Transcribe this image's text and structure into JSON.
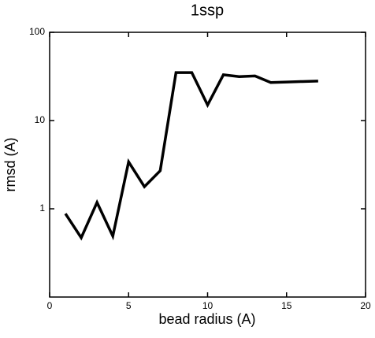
{
  "chart_data": {
    "type": "line",
    "title": "1ssp",
    "x_label": "bead radius (A)",
    "y_label": "rmsd (A)",
    "x": [
      1,
      2,
      3,
      4,
      5,
      6,
      7,
      8,
      9,
      10,
      11,
      12,
      13,
      14,
      15,
      16,
      17
    ],
    "series": [
      {
        "name": "rmsd",
        "color": "#000000",
        "values": [
          0.88,
          0.47,
          1.18,
          0.49,
          3.4,
          1.78,
          2.7,
          35,
          35,
          15,
          33,
          31.5,
          32,
          27,
          27.3,
          27.7,
          28
        ]
      }
    ],
    "xlim": [
      0,
      20
    ],
    "xticks": [
      0,
      5,
      10,
      15,
      20
    ],
    "ylim": [
      0.1,
      100
    ],
    "yticks": [
      1,
      10,
      100
    ],
    "y_scale": "log"
  }
}
